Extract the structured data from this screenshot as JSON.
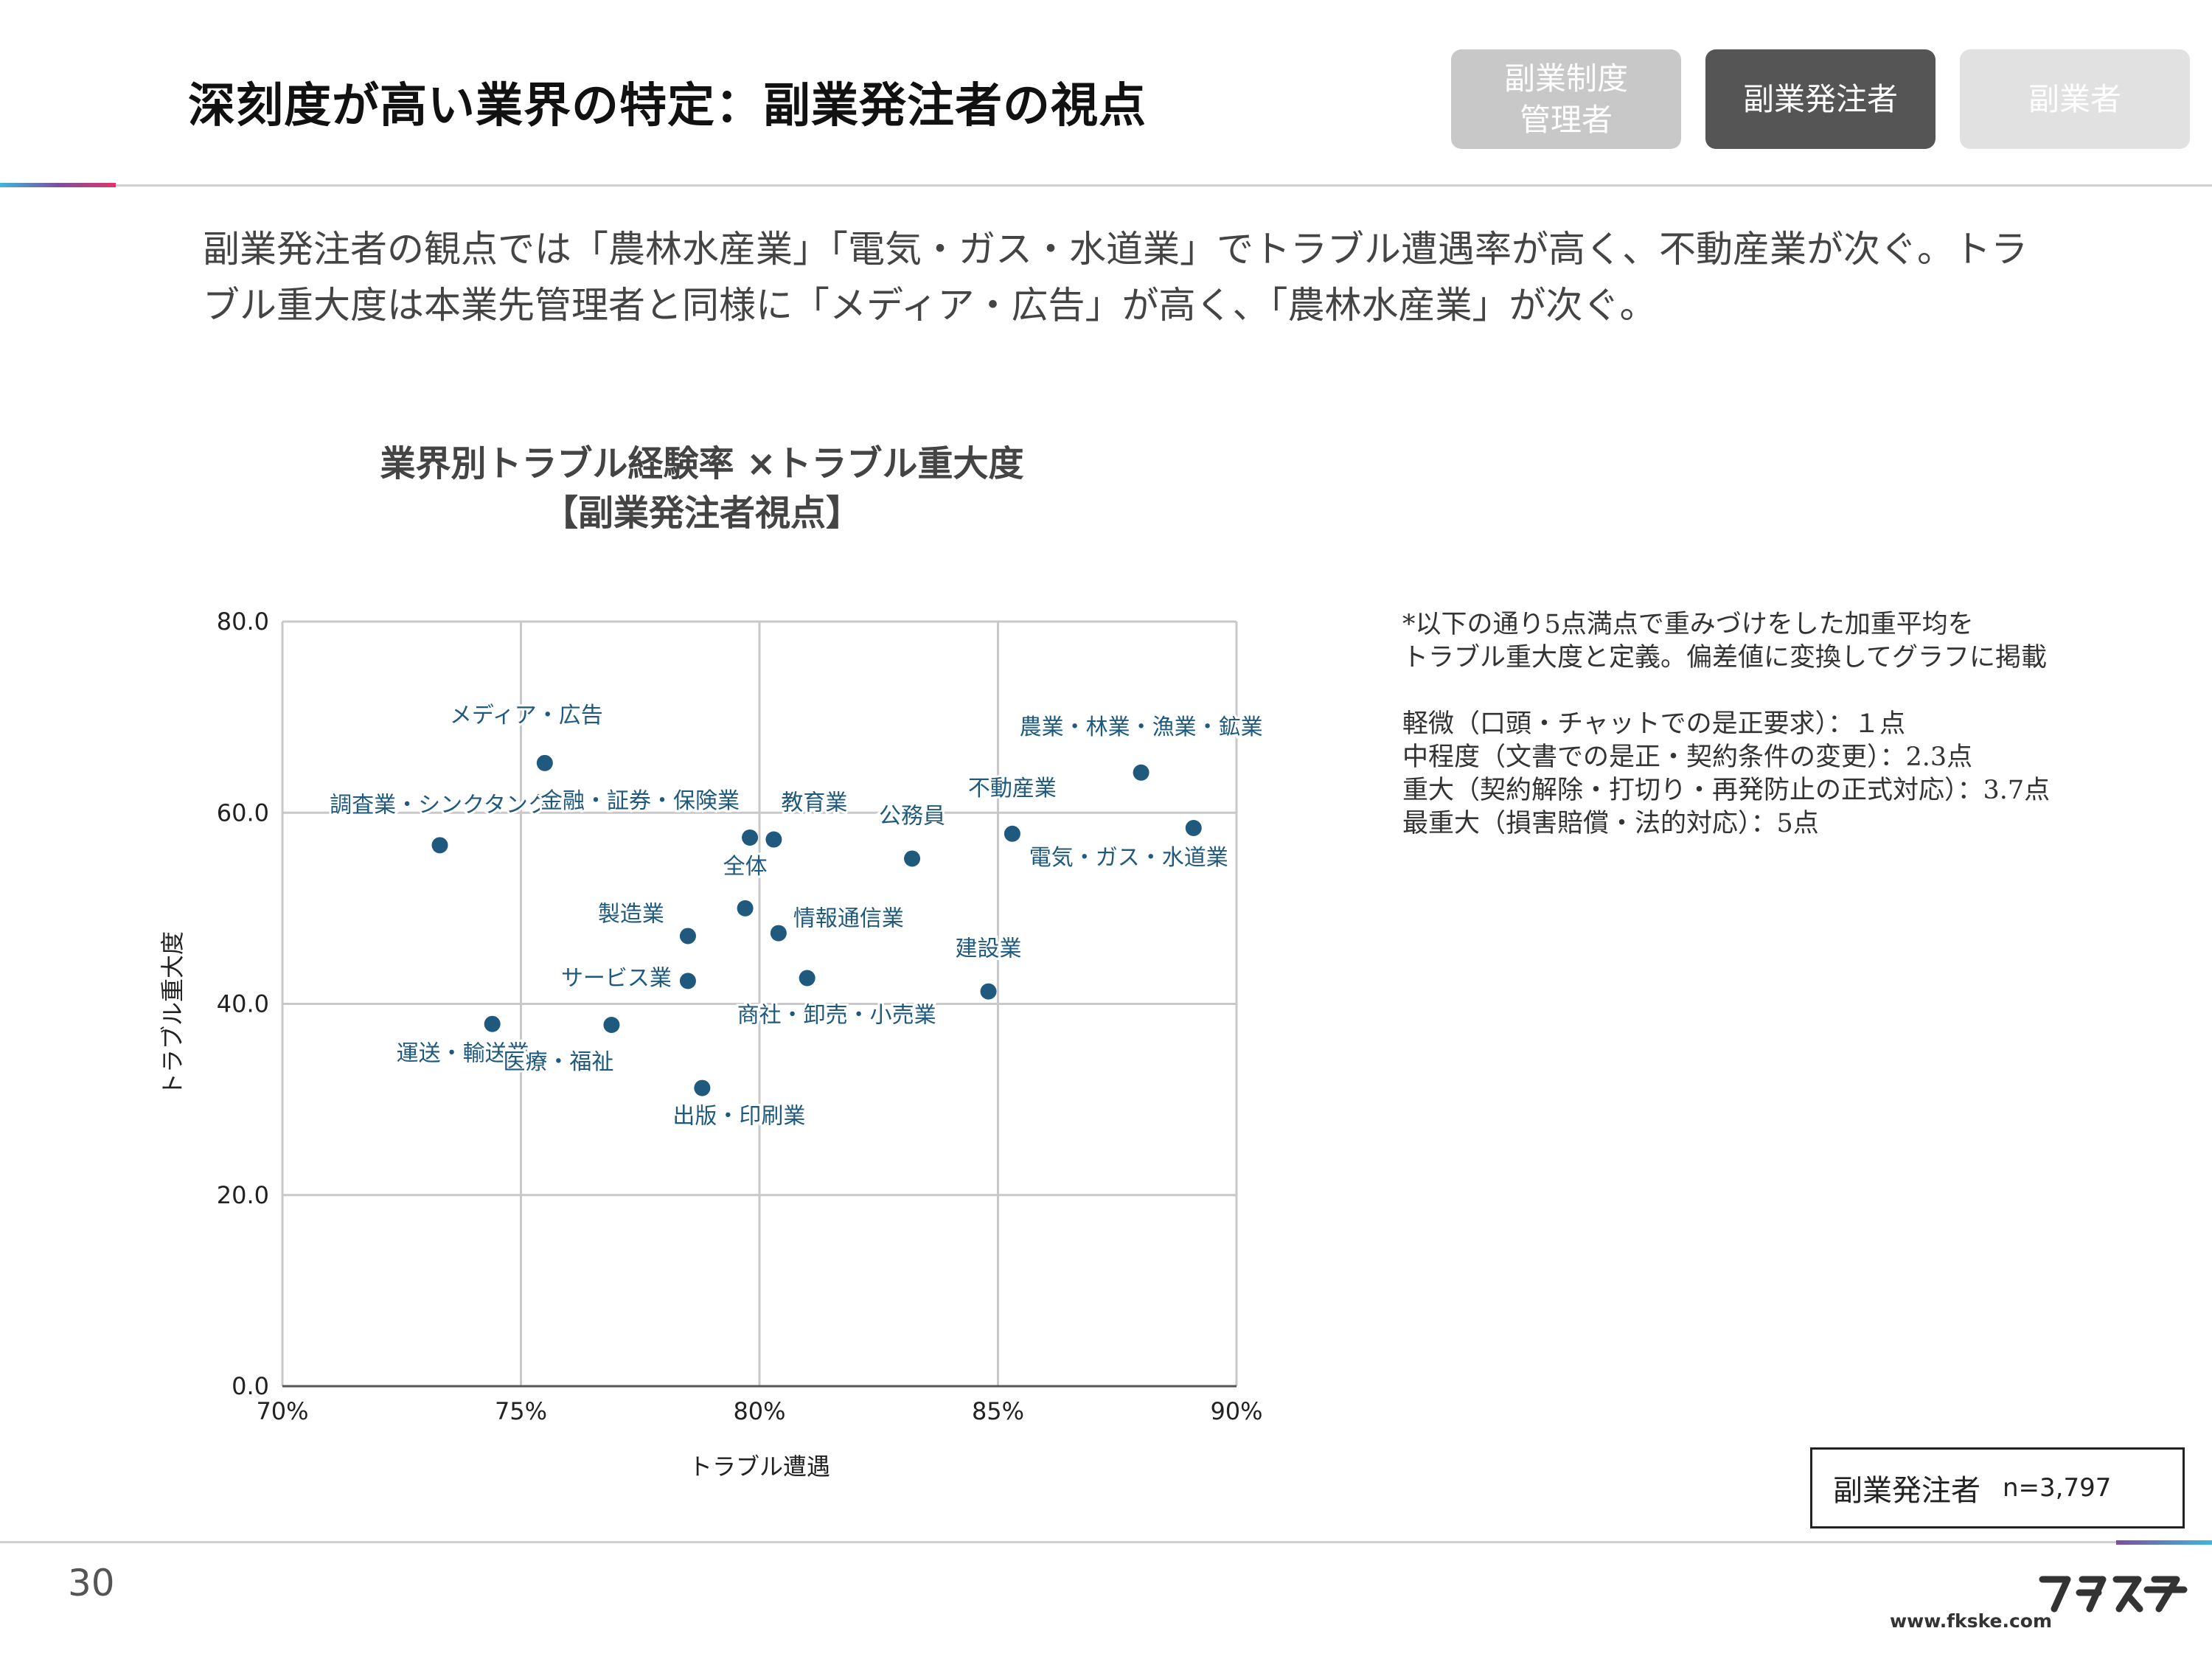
{
  "header": {
    "title": "深刻度が高い業界の特定：副業発注者の視点",
    "tabs": [
      {
        "label": "副業制度\n管理者",
        "state": "inactive"
      },
      {
        "label": "副業発注者",
        "state": "active"
      },
      {
        "label": "副業者",
        "state": "inactive"
      }
    ]
  },
  "lead": "副業発注者の観点では「農林水産業」「電気・ガス・水道業」でトラブル遭遇率が高く、不動産業が次ぐ。トラブル重大度は本業先管理者と同様に「メディア・広告」が高く、「農林水産業」が次ぐ。",
  "chart_data": {
    "type": "scatter",
    "title": "業界別トラブル経験率 ×トラブル重大度",
    "subtitle": "【副業発注者視点】",
    "xlabel": "トラブル遭遇",
    "ylabel": "トラブル重大度",
    "xlim": [
      70,
      90
    ],
    "ylim": [
      0,
      80
    ],
    "x_ticks": [
      "70%",
      "75%",
      "80%",
      "85%",
      "90%"
    ],
    "y_ticks": [
      "0.0",
      "20.0",
      "40.0",
      "60.0",
      "80.0"
    ],
    "grid": true,
    "point_color": "#1f5a7e",
    "points": [
      {
        "label": "メディア・広告",
        "x": 75.5,
        "y": 65.2
      },
      {
        "label": "農業・林業・漁業・鉱業",
        "x": 88.0,
        "y": 64.2
      },
      {
        "label": "不動産業",
        "x": 85.3,
        "y": 57.8
      },
      {
        "label": "電気・ガス・水道業",
        "x": 89.1,
        "y": 58.4
      },
      {
        "label": "調査業・シンクタンク",
        "x": 73.3,
        "y": 56.6
      },
      {
        "label": "金融・証券・保険業",
        "x": 79.8,
        "y": 57.4
      },
      {
        "label": "教育業",
        "x": 80.3,
        "y": 57.2
      },
      {
        "label": "公務員",
        "x": 83.2,
        "y": 55.2
      },
      {
        "label": "全体",
        "x": 79.7,
        "y": 50.0
      },
      {
        "label": "製造業",
        "x": 78.5,
        "y": 47.1
      },
      {
        "label": "情報通信業",
        "x": 80.4,
        "y": 47.4
      },
      {
        "label": "サービス業",
        "x": 78.5,
        "y": 42.4
      },
      {
        "label": "商社・卸売・小売業",
        "x": 81.0,
        "y": 42.7
      },
      {
        "label": "建設業",
        "x": 84.8,
        "y": 41.3
      },
      {
        "label": "運送・輸送業",
        "x": 74.4,
        "y": 37.9
      },
      {
        "label": "医療・福祉",
        "x": 76.9,
        "y": 37.8
      },
      {
        "label": "出版・印刷業",
        "x": 78.8,
        "y": 31.2
      }
    ]
  },
  "notes": [
    "*以下の通り5点満点で重みづけをした加重平均を",
    "トラブル重大度と定義。偏差値に変換してグラフに掲載",
    "",
    "軽微（口頭・チャットでの是正要求）：１点",
    "中程度（文書での是正・契約条件の変更）：2.3点",
    "重大（契約解除・打切り・再発防止の正式対応）：3.7点",
    "最重大（損害賠償・法的対応）：5点"
  ],
  "sample": {
    "label": "副業発注者",
    "n": "n=3,797"
  },
  "footer": {
    "page": "30",
    "url": "www.fkske.com",
    "logo": "フクスケ"
  }
}
